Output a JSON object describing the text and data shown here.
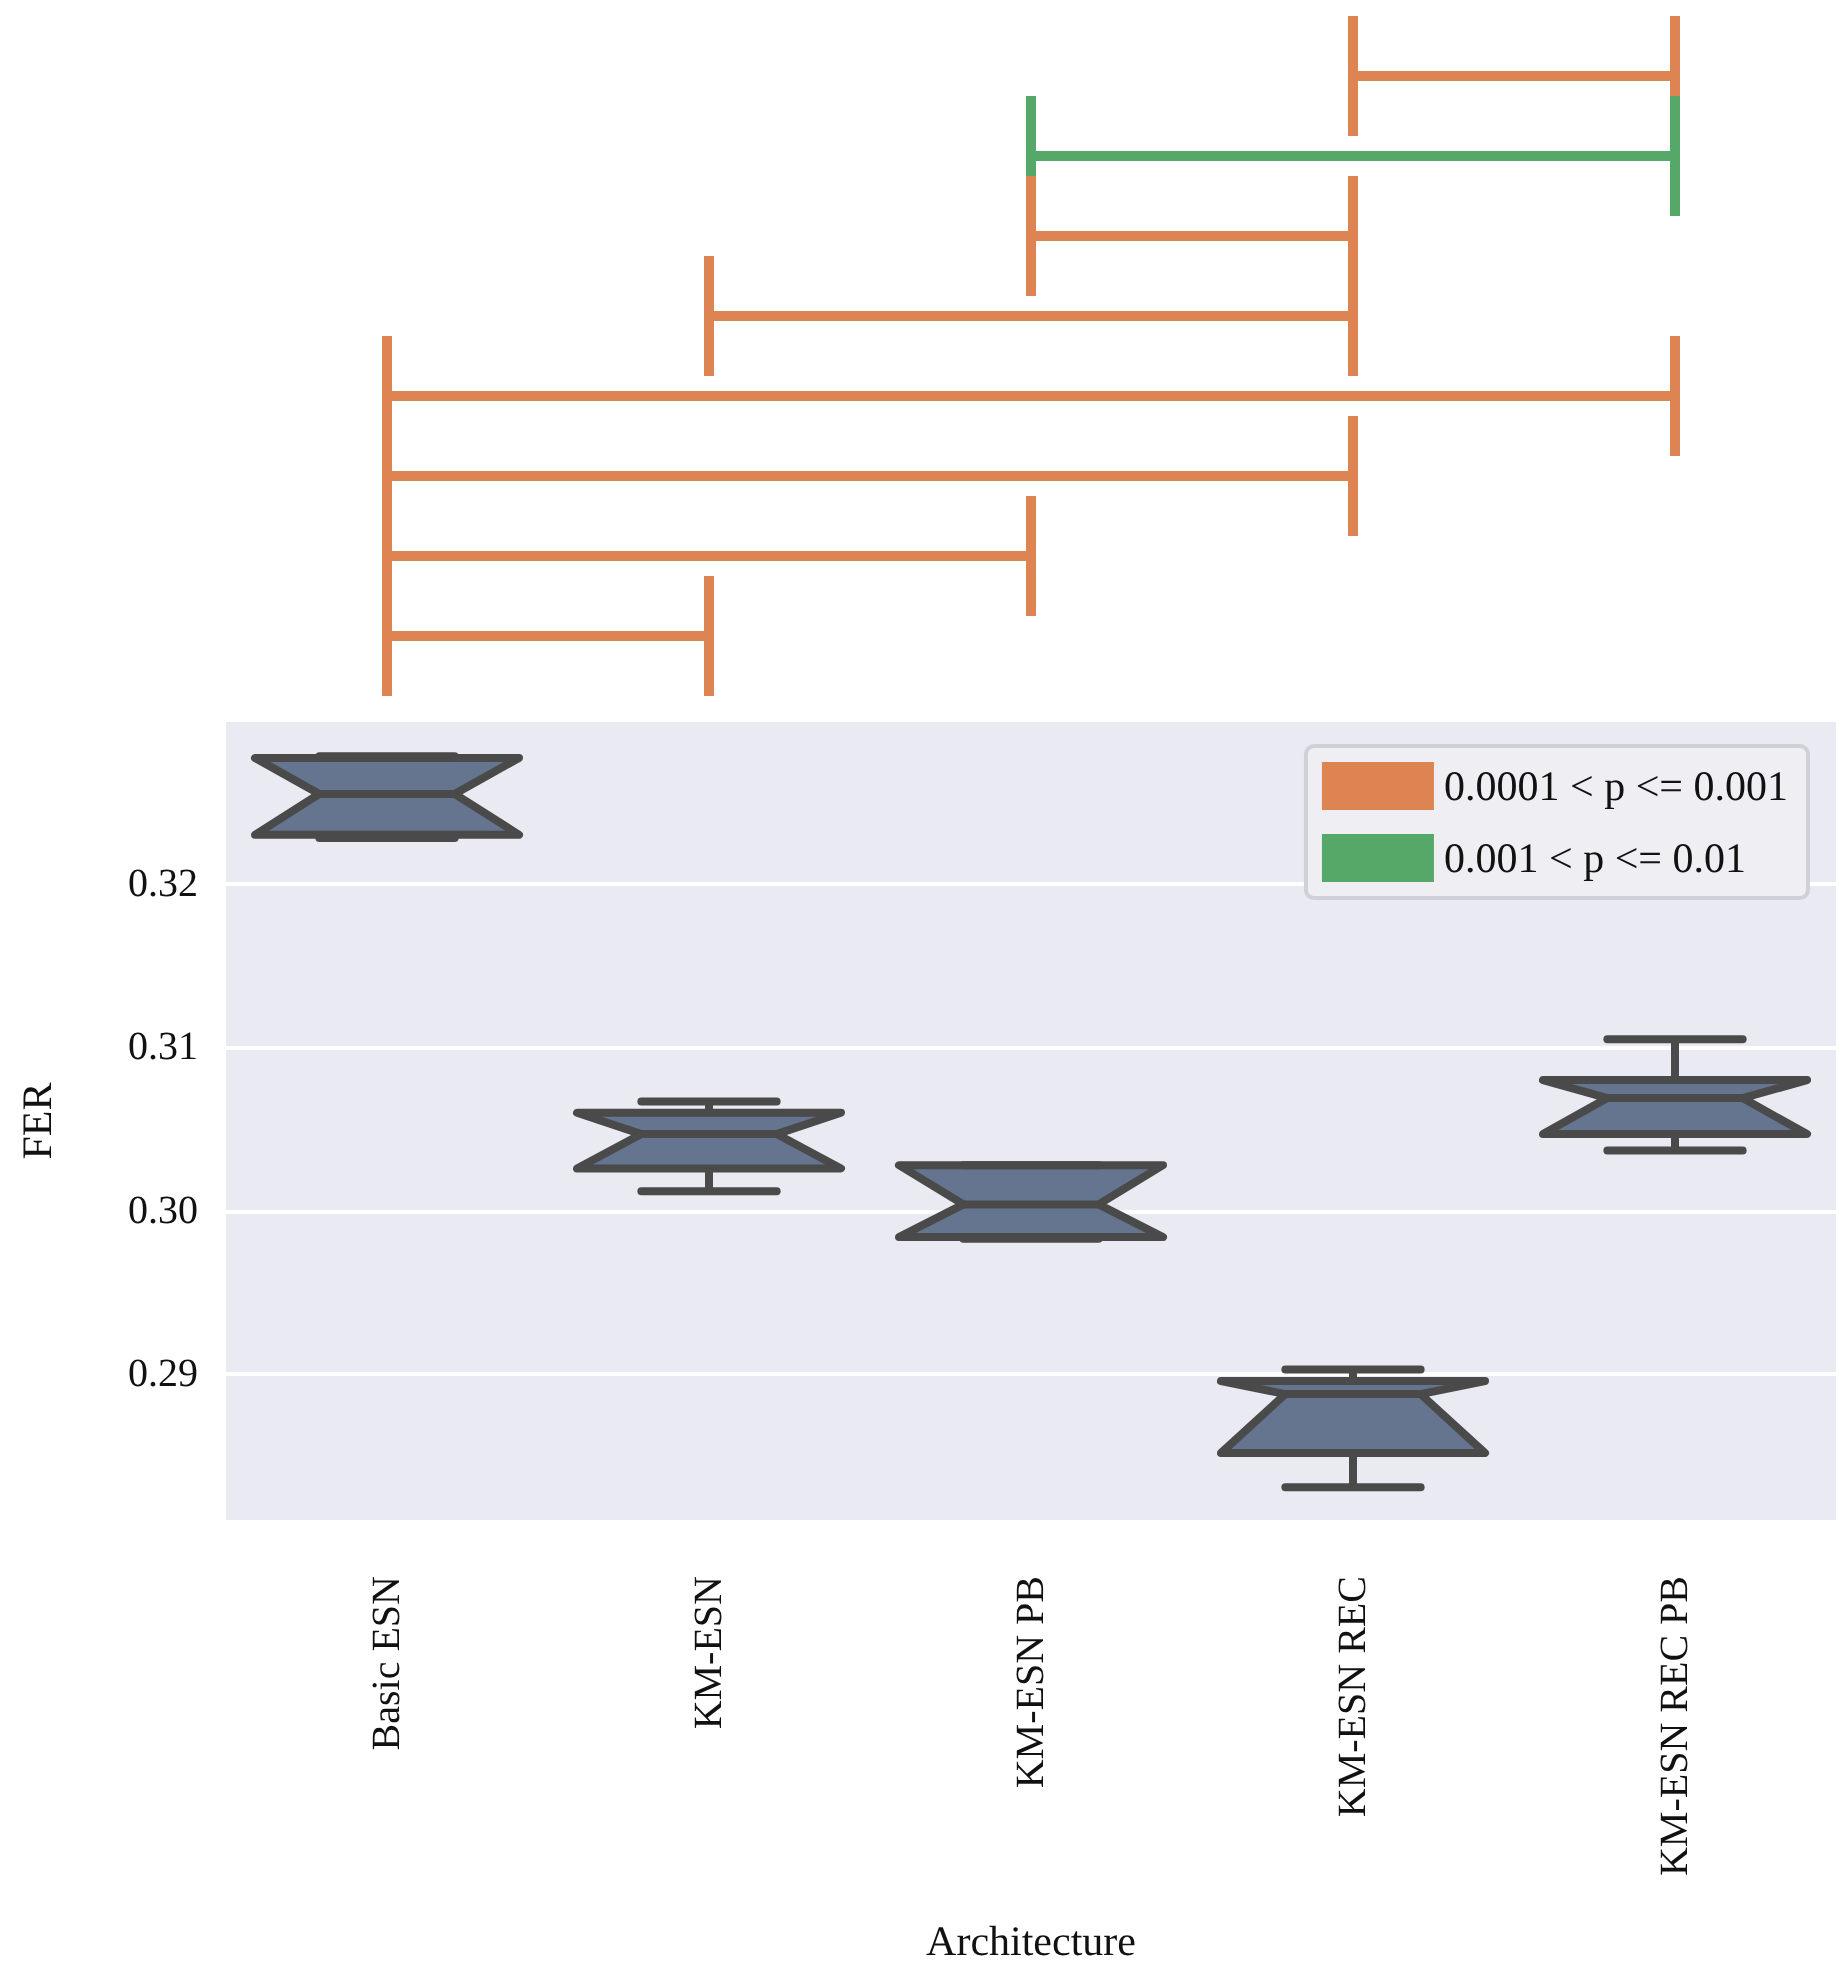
{
  "chart_data": {
    "type": "box",
    "xlabel": "Architecture",
    "ylabel": "FER",
    "categories": [
      "Basic ESN",
      "KM-ESN",
      "KM-ESN PB",
      "KM-ESN REC",
      "KM-ESN REC PB"
    ],
    "series": [
      {
        "color": "#65748f",
        "boxes": [
          {
            "low": 0.3228,
            "q1": 0.323,
            "median": 0.3255,
            "q3": 0.3277,
            "high": 0.3278
          },
          {
            "low": 0.3012,
            "q1": 0.3026,
            "median": 0.3047,
            "q3": 0.306,
            "high": 0.3067
          },
          {
            "low": 0.2983,
            "q1": 0.2984,
            "median": 0.3004,
            "q3": 0.3028,
            "high": 0.3028
          },
          {
            "low": 0.2831,
            "q1": 0.2852,
            "median": 0.2888,
            "q3": 0.2896,
            "high": 0.2903
          },
          {
            "low": 0.3037,
            "q1": 0.3047,
            "median": 0.3069,
            "q3": 0.308,
            "high": 0.3105
          }
        ]
      },
      {
        "name": "0.0001 < p <= 0.001",
        "color": "#dd8452",
        "values": [
          null,
          null,
          null,
          null,
          null
        ]
      },
      {
        "name": "0.001 < p <= 0.01",
        "color": "#55a868",
        "values": [
          null,
          null,
          null,
          null,
          null
        ]
      }
    ],
    "ylim": [
      0.2811,
      0.3299
    ],
    "yticks": [
      {
        "value": 0.29,
        "label": "0.29"
      },
      {
        "value": 0.3,
        "label": "0.30"
      },
      {
        "value": 0.31,
        "label": "0.31"
      },
      {
        "value": 0.32,
        "label": "0.32"
      }
    ],
    "grid": "y",
    "legend": "top right"
  }
}
